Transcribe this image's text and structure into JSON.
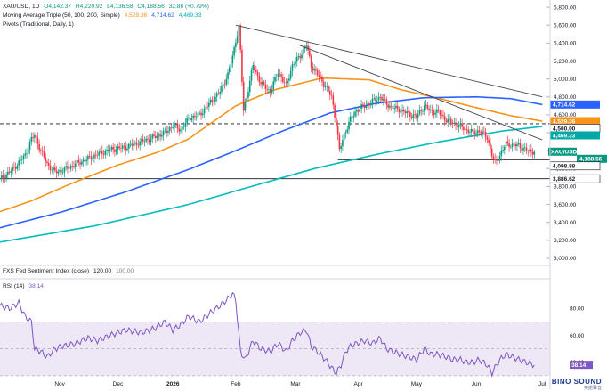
{
  "header": {
    "symbol": "XAU/USD, 1D",
    "open": "O4,142.37",
    "high": "H4,220.92",
    "low": "L4,136.58",
    "close": "C4,188.56",
    "change": "32.86 (+0.79%)",
    "ma_title": "Moving Average Triple (50, 100, 200, Simple)",
    "ma50_value": "4,529.36",
    "ma100_value": "4,714.62",
    "ma200_value": "4,469.33",
    "pivots_title": "Pivots (Traditional, Daily, 1)"
  },
  "sentiment": {
    "title": "FXS Fed Sentiment Index (close)",
    "value": "120.00",
    "value2": "100.00"
  },
  "rsi": {
    "title": "RSI (14)",
    "value": "38.14"
  },
  "logo": {
    "text": "BINO SOUND",
    "subtext": "英諾聲音"
  },
  "colors": {
    "up": "#089981",
    "down": "#f23645",
    "ma50": "#f7931a",
    "ma100": "#2962ff",
    "ma200": "#00bcbc",
    "rsi": "#7e57c2",
    "rsi_band": "#ede7f6",
    "trendline": "#434651"
  },
  "chart_data": [
    {
      "type": "candlestick",
      "title": "XAU/USD, 1D",
      "y_ticks": [
        "5,800.00",
        "5,600.00",
        "5,400.00",
        "5,200.00",
        "5,000.00",
        "4,800.00",
        "4,600.00",
        "4,400.00",
        "4,200.00",
        "4,000.00",
        "3,800.00",
        "3,600.00",
        "3,400.00",
        "3,200.00",
        "3,000.00"
      ],
      "y_tick_values": [
        5800,
        5600,
        5400,
        5200,
        5000,
        4800,
        4600,
        4400,
        4200,
        4000,
        3800,
        3600,
        3400,
        3200,
        3000
      ],
      "ylim": [
        2920,
        5880
      ],
      "x_ticks": [
        "Nov",
        "Dec",
        "2026",
        "Feb",
        "Mar",
        "Apr",
        "May",
        "Jun",
        "Jul"
      ],
      "x_tick_bold": [
        false,
        false,
        true,
        false,
        false,
        false,
        false,
        false,
        false
      ],
      "price_labels": [
        {
          "text": "4,714.62",
          "value": 4714.62,
          "color": "#2962ff"
        },
        {
          "text": "4,529.36",
          "value": 4529.36,
          "color": "#f7931a"
        },
        {
          "text": "4,500.00",
          "value": 4500.0,
          "color": "#131722"
        },
        {
          "text": "4,469.33",
          "value": 4469.33,
          "color": "#00a8a8"
        },
        {
          "text": "XAU/USD",
          "value": 4188.56,
          "color": "#089981"
        },
        {
          "text": "4,188.56",
          "value": 4188.56,
          "color": "#089981"
        },
        {
          "text": "4,098.88",
          "value": 4098.88,
          "color": "#131722"
        },
        {
          "text": "3,886.62",
          "value": 3886.62,
          "color": "#131722"
        }
      ],
      "horizontal_levels": [
        {
          "value": 4500.0,
          "style": "dashed"
        },
        {
          "value": 4098.88,
          "style": "solid"
        },
        {
          "value": 3886.62,
          "style": "solid"
        }
      ],
      "series": [
        {
          "name": "SMA 50",
          "anchors": [
            [
              0,
              3520
            ],
            [
              20,
              3640
            ],
            [
              45,
              3830
            ],
            [
              75,
              4040
            ],
            [
              100,
              4180
            ],
            [
              120,
              4330
            ],
            [
              150,
              4700
            ],
            [
              175,
              4880
            ],
            [
              205,
              5010
            ],
            [
              235,
              4990
            ],
            [
              255,
              4880
            ],
            [
              280,
              4780
            ],
            [
              303,
              4680
            ],
            [
              325,
              4590
            ],
            [
              345,
              4529
            ]
          ]
        },
        {
          "name": "SMA 100",
          "anchors": [
            [
              0,
              3340
            ],
            [
              40,
              3520
            ],
            [
              80,
              3740
            ],
            [
              120,
              3990
            ],
            [
              150,
              4200
            ],
            [
              180,
              4420
            ],
            [
              210,
              4620
            ],
            [
              240,
              4730
            ],
            [
              270,
              4790
            ],
            [
              303,
              4800
            ],
            [
              325,
              4780
            ],
            [
              345,
              4714
            ]
          ]
        },
        {
          "name": "SMA 200",
          "anchors": [
            [
              0,
              3180
            ],
            [
              60,
              3360
            ],
            [
              120,
              3600
            ],
            [
              160,
              3800
            ],
            [
              200,
              4000
            ],
            [
              240,
              4160
            ],
            [
              280,
              4300
            ],
            [
              320,
              4420
            ],
            [
              345,
              4469
            ]
          ]
        }
      ],
      "price_path": [
        [
          0,
          3880
        ],
        [
          8,
          3990
        ],
        [
          16,
          4150
        ],
        [
          20,
          4330
        ],
        [
          22,
          4370
        ],
        [
          26,
          4200
        ],
        [
          30,
          4050
        ],
        [
          35,
          3960
        ],
        [
          40,
          3980
        ],
        [
          48,
          4050
        ],
        [
          56,
          4110
        ],
        [
          62,
          4160
        ],
        [
          70,
          4210
        ],
        [
          80,
          4240
        ],
        [
          90,
          4300
        ],
        [
          98,
          4350
        ],
        [
          105,
          4400
        ],
        [
          110,
          4480
        ],
        [
          115,
          4430
        ],
        [
          120,
          4560
        ],
        [
          127,
          4600
        ],
        [
          133,
          4720
        ],
        [
          140,
          4860
        ],
        [
          145,
          5050
        ],
        [
          148,
          5250
        ],
        [
          150,
          5430
        ],
        [
          152,
          5580
        ],
        [
          153,
          5300
        ],
        [
          155,
          4650
        ],
        [
          157,
          4800
        ],
        [
          161,
          5150
        ],
        [
          166,
          4950
        ],
        [
          172,
          4860
        ],
        [
          177,
          5080
        ],
        [
          182,
          4920
        ],
        [
          186,
          5150
        ],
        [
          191,
          5260
        ],
        [
          195,
          5380
        ],
        [
          198,
          5150
        ],
        [
          202,
          5050
        ],
        [
          207,
          4920
        ],
        [
          211,
          4800
        ],
        [
          214,
          4500
        ],
        [
          216,
          4200
        ],
        [
          219,
          4380
        ],
        [
          223,
          4550
        ],
        [
          227,
          4650
        ],
        [
          232,
          4700
        ],
        [
          237,
          4750
        ],
        [
          242,
          4800
        ],
        [
          246,
          4720
        ],
        [
          250,
          4680
        ],
        [
          255,
          4650
        ],
        [
          260,
          4610
        ],
        [
          265,
          4580
        ],
        [
          270,
          4700
        ],
        [
          274,
          4640
        ],
        [
          279,
          4630
        ],
        [
          284,
          4540
        ],
        [
          288,
          4510
        ],
        [
          293,
          4470
        ],
        [
          297,
          4430
        ],
        [
          301,
          4400
        ],
        [
          305,
          4420
        ],
        [
          310,
          4350
        ],
        [
          313,
          4150
        ],
        [
          315,
          4060
        ],
        [
          318,
          4150
        ],
        [
          322,
          4280
        ],
        [
          326,
          4260
        ],
        [
          330,
          4260
        ],
        [
          335,
          4200
        ],
        [
          340,
          4188
        ]
      ],
      "trendlines": [
        {
          "from": [
            150,
            5600
          ],
          "to": [
            345,
            4800
          ]
        },
        {
          "from": [
            190,
            5380
          ],
          "to": [
            345,
            4320
          ]
        }
      ]
    },
    {
      "type": "line",
      "title": "RSI (14)",
      "y_ticks": [
        "80.00",
        "60.00",
        "40.00"
      ],
      "y_tick_values": [
        80,
        60,
        40
      ],
      "ylim": [
        28,
        96
      ],
      "band": [
        30,
        70
      ],
      "x_ticks": [
        "Nov",
        "Dec",
        "2026",
        "Feb",
        "Mar",
        "Apr",
        "May",
        "Jun",
        "Jul"
      ],
      "anchors": [
        [
          0,
          82
        ],
        [
          6,
          80
        ],
        [
          12,
          84
        ],
        [
          16,
          74
        ],
        [
          20,
          70
        ],
        [
          22,
          50
        ],
        [
          26,
          48
        ],
        [
          30,
          44
        ],
        [
          35,
          50
        ],
        [
          40,
          52
        ],
        [
          48,
          54
        ],
        [
          56,
          58
        ],
        [
          62,
          56
        ],
        [
          70,
          60
        ],
        [
          80,
          64
        ],
        [
          90,
          62
        ],
        [
          98,
          65
        ],
        [
          105,
          70
        ],
        [
          110,
          64
        ],
        [
          115,
          68
        ],
        [
          120,
          74
        ],
        [
          127,
          70
        ],
        [
          133,
          76
        ],
        [
          140,
          82
        ],
        [
          145,
          87
        ],
        [
          148,
          91
        ],
        [
          150,
          86
        ],
        [
          153,
          48
        ],
        [
          156,
          42
        ],
        [
          161,
          56
        ],
        [
          166,
          50
        ],
        [
          172,
          48
        ],
        [
          177,
          54
        ],
        [
          182,
          48
        ],
        [
          186,
          56
        ],
        [
          191,
          62
        ],
        [
          195,
          64
        ],
        [
          198,
          52
        ],
        [
          202,
          48
        ],
        [
          207,
          42
        ],
        [
          211,
          36
        ],
        [
          214,
          32
        ],
        [
          217,
          38
        ],
        [
          220,
          48
        ],
        [
          223,
          52
        ],
        [
          227,
          54
        ],
        [
          232,
          56
        ],
        [
          237,
          54
        ],
        [
          242,
          58
        ],
        [
          246,
          50
        ],
        [
          250,
          48
        ],
        [
          255,
          46
        ],
        [
          260,
          44
        ],
        [
          265,
          42
        ],
        [
          270,
          50
        ],
        [
          274,
          46
        ],
        [
          279,
          46
        ],
        [
          284,
          44
        ],
        [
          288,
          42
        ],
        [
          293,
          42
        ],
        [
          297,
          40
        ],
        [
          301,
          40
        ],
        [
          305,
          42
        ],
        [
          310,
          38
        ],
        [
          313,
          32
        ],
        [
          315,
          36
        ],
        [
          318,
          42
        ],
        [
          322,
          46
        ],
        [
          326,
          44
        ],
        [
          330,
          42
        ],
        [
          335,
          40
        ],
        [
          340,
          38
        ]
      ],
      "last_value": 38.14
    }
  ]
}
